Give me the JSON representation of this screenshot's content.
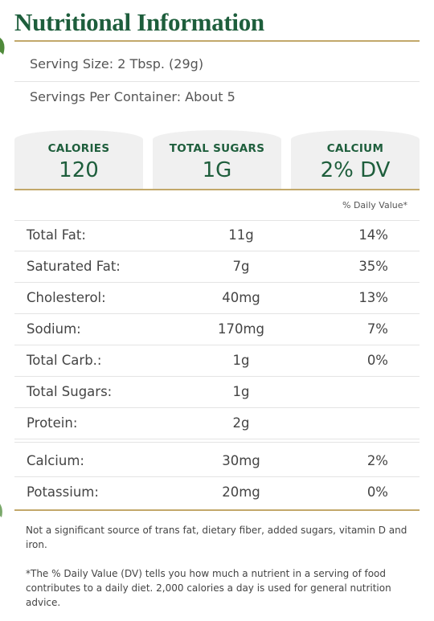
{
  "header": {
    "title": "Nutritional Information"
  },
  "serving": {
    "size": "Serving Size: 2 Tbsp. (29g)",
    "per_container": "Servings Per Container: About 5"
  },
  "highlights": [
    {
      "label": "CALORIES",
      "value": "120"
    },
    {
      "label": "TOTAL SUGARS",
      "value": "1G"
    },
    {
      "label": "CALCIUM",
      "value": "2% DV"
    }
  ],
  "daily_value_header": "% Daily Value*",
  "nutrients": [
    {
      "name": "Total Fat:",
      "amount": "11g",
      "dv": "14%"
    },
    {
      "name": "Saturated Fat:",
      "amount": "7g",
      "dv": "35%"
    },
    {
      "name": "Cholesterol:",
      "amount": "40mg",
      "dv": "13%"
    },
    {
      "name": "Sodium:",
      "amount": "170mg",
      "dv": "7%"
    },
    {
      "name": "Total Carb.:",
      "amount": "1g",
      "dv": "0%"
    },
    {
      "name": "Total Sugars:",
      "amount": "1g"
    },
    {
      "name": "Protein:",
      "amount": "2g"
    }
  ],
  "minerals": [
    {
      "name": "Calcium:",
      "amount": "30mg",
      "dv": "2%"
    },
    {
      "name": "Potassium:",
      "amount": "20mg",
      "dv": "0%"
    }
  ],
  "footnotes": [
    "Not a significant source of trans fat, dietary fiber, added sugars, vitamin D and iron.",
    "*The % Daily Value (DV) tells you how much a nutrient in a serving of food contributes to a daily diet. 2,000 calories a day is used for general nutrition advice."
  ]
}
